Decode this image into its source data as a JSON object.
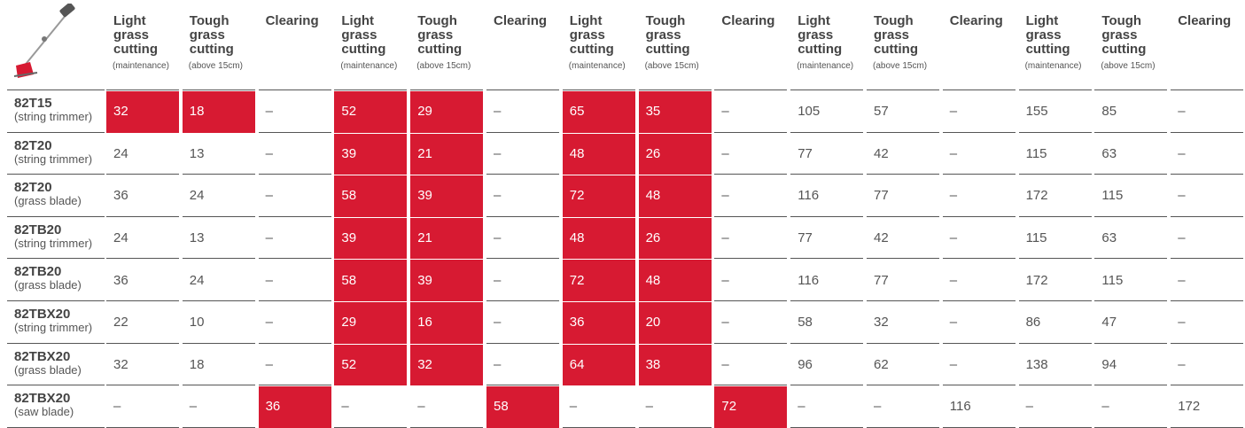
{
  "header": {
    "columns": [
      {
        "title": "Light grass cutting",
        "note": "(maintenance)"
      },
      {
        "title": "Tough grass cutting",
        "note": "(above 15cm)"
      },
      {
        "title": "Clearing"
      },
      {
        "title": "Light grass cutting",
        "note": "(maintenance)"
      },
      {
        "title": "Tough grass cutting",
        "note": "(above 15cm)"
      },
      {
        "title": "Clearing"
      },
      {
        "title": "Light grass cutting",
        "note": "(maintenance)"
      },
      {
        "title": "Tough grass cutting",
        "note": "(above 15cm)"
      },
      {
        "title": "Clearing"
      },
      {
        "title": "Light grass cutting",
        "note": "(maintenance)"
      },
      {
        "title": "Tough grass cutting",
        "note": "(above 15cm)"
      },
      {
        "title": "Clearing"
      },
      {
        "title": "Light grass cutting",
        "note": "(maintenance)"
      },
      {
        "title": "Tough grass cutting",
        "note": "(above 15cm)"
      },
      {
        "title": "Clearing"
      }
    ]
  },
  "highlight_color": "#d71a32",
  "table": {
    "rows": [
      {
        "model": "82T15",
        "sub": "(string trimmer)",
        "cells": [
          32,
          18,
          "–",
          52,
          29,
          "–",
          65,
          35,
          "–",
          105,
          57,
          "–",
          155,
          85,
          "–"
        ],
        "highlighted": [
          0,
          1,
          3,
          4,
          6,
          7
        ]
      },
      {
        "model": "82T20",
        "sub": "(string trimmer)",
        "cells": [
          24,
          13,
          "–",
          39,
          21,
          "–",
          48,
          26,
          "–",
          77,
          42,
          "–",
          115,
          63,
          "–"
        ],
        "highlighted": [
          3,
          4,
          6,
          7
        ]
      },
      {
        "model": "82T20",
        "sub": "(grass blade)",
        "cells": [
          36,
          24,
          "–",
          58,
          39,
          "–",
          72,
          48,
          "–",
          116,
          77,
          "–",
          172,
          115,
          "–"
        ],
        "highlighted": [
          3,
          4,
          6,
          7
        ]
      },
      {
        "model": "82TB20",
        "sub": "(string trimmer)",
        "cells": [
          24,
          13,
          "–",
          39,
          21,
          "–",
          48,
          26,
          "–",
          77,
          42,
          "–",
          115,
          63,
          "–"
        ],
        "highlighted": [
          3,
          4,
          6,
          7
        ]
      },
      {
        "model": "82TB20",
        "sub": "(grass blade)",
        "cells": [
          36,
          24,
          "–",
          58,
          39,
          "–",
          72,
          48,
          "–",
          116,
          77,
          "–",
          172,
          115,
          "–"
        ],
        "highlighted": [
          3,
          4,
          6,
          7
        ]
      },
      {
        "model": "82TBX20",
        "sub": "(string trimmer)",
        "cells": [
          22,
          10,
          "–",
          29,
          16,
          "–",
          36,
          20,
          "–",
          58,
          32,
          "–",
          86,
          47,
          "–"
        ],
        "highlighted": [
          3,
          4,
          6,
          7
        ]
      },
      {
        "model": "82TBX20",
        "sub": "(grass blade)",
        "cells": [
          32,
          18,
          "–",
          52,
          32,
          "–",
          64,
          38,
          "–",
          96,
          62,
          "–",
          138,
          94,
          "–"
        ],
        "highlighted": [
          3,
          4,
          6,
          7
        ]
      },
      {
        "model": "82TBX20",
        "sub": "(saw blade)",
        "cells": [
          "–",
          "–",
          36,
          "–",
          "–",
          58,
          "–",
          "–",
          72,
          "–",
          "–",
          116,
          "–",
          "–",
          172
        ],
        "highlighted": [
          2,
          5,
          8
        ]
      }
    ]
  }
}
